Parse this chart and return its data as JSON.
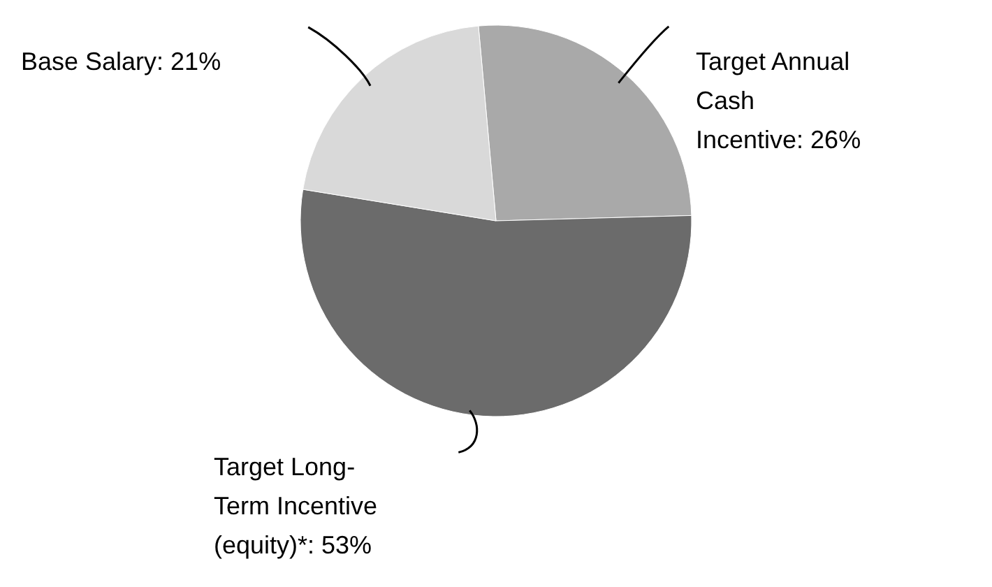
{
  "chart_data": {
    "type": "pie",
    "categories": [
      "Target Annual Cash Incentive",
      "Target Long-Term Incentive (equity)*",
      "Base Salary"
    ],
    "values": [
      26,
      53,
      21
    ],
    "value_labels": [
      ": 26%",
      ": 53%",
      ": 21%"
    ],
    "colors": [
      "#a9a9a9",
      "#6b6b6b",
      "#d9d9d9"
    ]
  }
}
